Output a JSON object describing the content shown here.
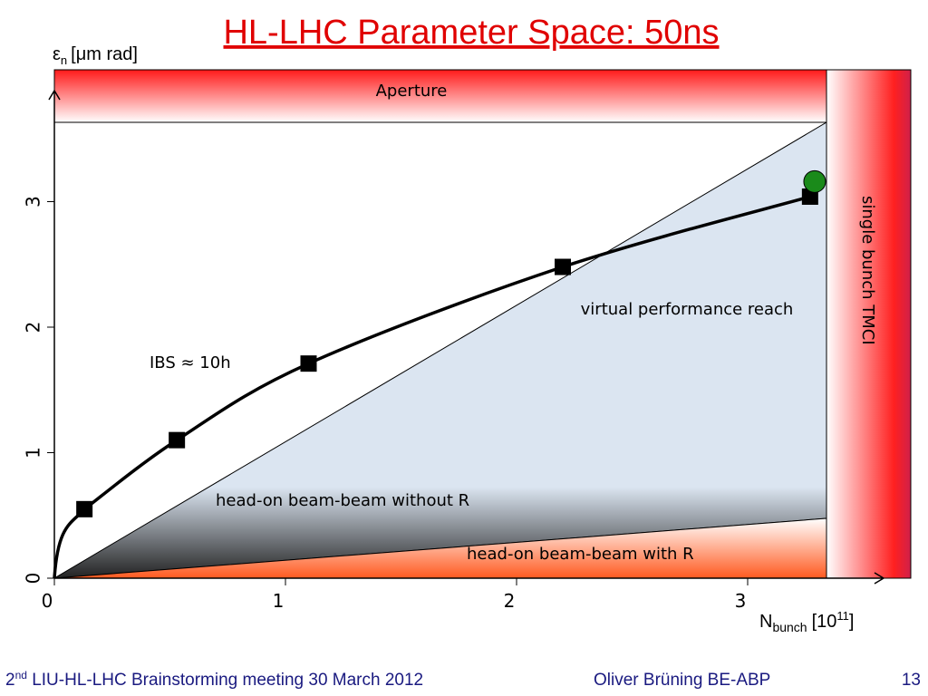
{
  "chart_data": {
    "type": "line",
    "title": "HL-LHC Parameter Space: 50ns",
    "y_label": {
      "symbol": "ε",
      "sub": "n",
      "unit": "[μm rad]"
    },
    "x_label": {
      "symbol": "N",
      "sub": "bunch",
      "unit": "[10",
      "sup": "11",
      "close": "]"
    },
    "xlim": [
      0,
      3.6
    ],
    "ylim": [
      0,
      4.0
    ],
    "xticks": [
      0,
      1,
      2,
      3
    ],
    "yticks": [
      0,
      1,
      2,
      3
    ],
    "series": [
      {
        "name": "IBS ≈ 10h",
        "color": "#000000",
        "x": [
          0.13,
          0.53,
          1.1,
          2.2,
          3.27
        ],
        "values": [
          0.55,
          1.1,
          1.71,
          2.48,
          3.04
        ]
      },
      {
        "color": "#1a8a1a",
        "x": [
          3.29
        ],
        "values": [
          3.16
        ]
      }
    ],
    "annotations": [
      "Aperture",
      "single bunch TMCI",
      "virtual performance reach",
      "head-on beam-beam without R",
      "head-on beam-beam with R"
    ]
  },
  "footer": {
    "ordinal": "2",
    "suffix": "nd",
    "event": " LIU-HL-LHC Brainstorming meeting 30 March 2012",
    "author": "Oliver Brüning BE-ABP",
    "page": "13"
  }
}
